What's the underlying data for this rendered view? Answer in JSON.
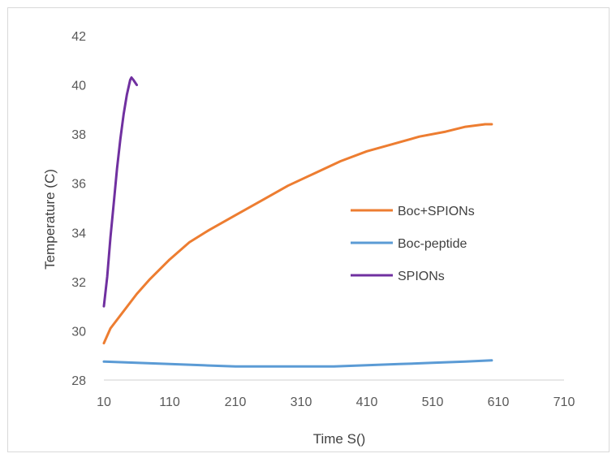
{
  "chart_data": {
    "type": "line",
    "title": "",
    "xlabel": "Time S()",
    "ylabel": "Temperature  (C)",
    "xlim": [
      10,
      710
    ],
    "ylim": [
      28,
      42
    ],
    "x_ticks": [
      "10",
      "110",
      "210",
      "310",
      "410",
      "510",
      "610",
      "710"
    ],
    "y_ticks": [
      "28",
      "30",
      "32",
      "34",
      "36",
      "38",
      "40",
      "42"
    ],
    "grid": false,
    "legend_position": "right-center",
    "series": [
      {
        "name": "Boc+SPIONs",
        "color": "#ED7D31",
        "x": [
          10,
          20,
          40,
          60,
          80,
          110,
          140,
          170,
          210,
          250,
          290,
          330,
          370,
          410,
          450,
          490,
          530,
          560,
          590,
          600
        ],
        "y": [
          29.5,
          30.1,
          30.8,
          31.5,
          32.1,
          32.9,
          33.6,
          34.1,
          34.7,
          35.3,
          35.9,
          36.4,
          36.9,
          37.3,
          37.6,
          37.9,
          38.1,
          38.3,
          38.4,
          38.4
        ]
      },
      {
        "name": "Boc-peptide",
        "color": "#5B9BD5",
        "x": [
          10,
          60,
          110,
          160,
          210,
          260,
          310,
          360,
          410,
          460,
          510,
          560,
          600
        ],
        "y": [
          28.75,
          28.7,
          28.65,
          28.6,
          28.55,
          28.55,
          28.55,
          28.55,
          28.6,
          28.65,
          28.7,
          28.75,
          28.8
        ]
      },
      {
        "name": "SPIONs",
        "color": "#7030A0",
        "x": [
          10,
          15,
          20,
          25,
          30,
          35,
          40,
          45,
          50,
          52,
          55,
          60
        ],
        "y": [
          31.0,
          32.2,
          33.8,
          35.2,
          36.6,
          37.8,
          38.8,
          39.6,
          40.2,
          40.3,
          40.2,
          40.0
        ]
      }
    ]
  }
}
